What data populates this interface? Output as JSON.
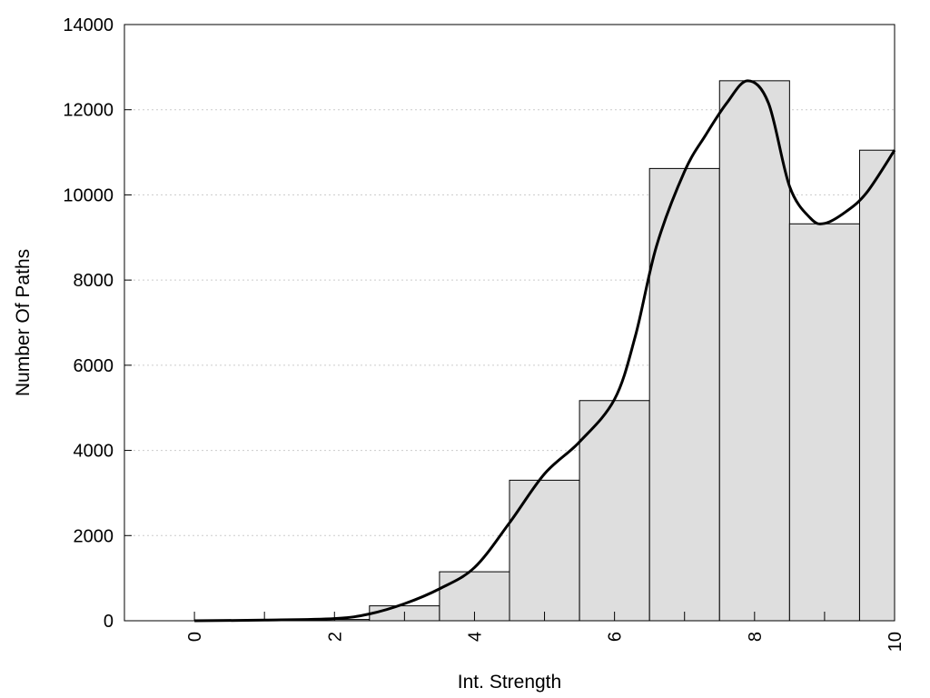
{
  "chart_data": {
    "type": "bar",
    "xlabel": "Int. Strength",
    "ylabel": "Number Of Paths",
    "xlim": [
      -1,
      10
    ],
    "ylim": [
      0,
      14000
    ],
    "x_ticks": [
      "0",
      "2",
      "4",
      "6",
      "8",
      "10"
    ],
    "y_ticks": [
      "0",
      "2000",
      "4000",
      "6000",
      "8000",
      "10000",
      "12000",
      "14000"
    ],
    "grid": "horizontal-dotted",
    "colors": {
      "bar_fill": "#dedede",
      "bar_stroke": "#000000",
      "curve": "#000000",
      "grid": "#cccccc"
    },
    "bars": {
      "x": [
        0,
        1,
        2,
        3,
        4,
        5,
        6,
        7,
        8,
        9,
        10
      ],
      "values": [
        0,
        0,
        30,
        350,
        1150,
        3300,
        5170,
        10620,
        12680,
        9320,
        11050
      ]
    },
    "curve": {
      "x": [
        0,
        1,
        2,
        2.5,
        3,
        3.5,
        4,
        4.5,
        5,
        5.5,
        6,
        6.3,
        6.6,
        7,
        7.3,
        7.6,
        7.9,
        8.2,
        8.5,
        8.8,
        9,
        9.3,
        9.6,
        10
      ],
      "y": [
        0,
        15,
        50,
        160,
        400,
        750,
        1250,
        2300,
        3450,
        4200,
        5200,
        6700,
        8800,
        10550,
        11400,
        12150,
        12680,
        12150,
        10200,
        9450,
        9330,
        9600,
        10050,
        11050
      ]
    }
  }
}
